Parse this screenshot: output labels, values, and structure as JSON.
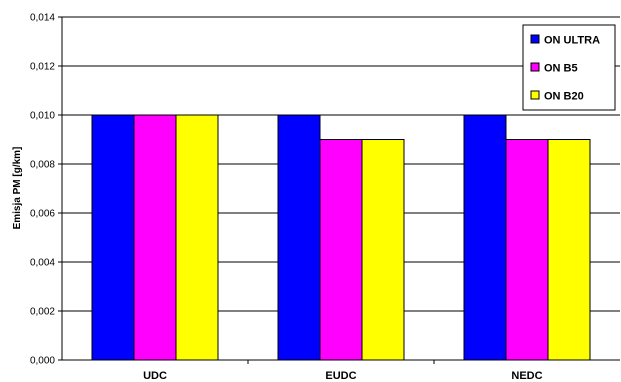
{
  "chart_data": {
    "type": "bar",
    "title": "",
    "xlabel": "",
    "ylabel": "Emisja PM [g/km]",
    "categories": [
      "UDC",
      "EUDC",
      "NEDC"
    ],
    "series": [
      {
        "name": "ON ULTRA",
        "color": "#0000ff",
        "values": [
          0.01,
          0.01,
          0.01
        ]
      },
      {
        "name": "ON B5",
        "color": "#ff00ff",
        "values": [
          0.01,
          0.009,
          0.009
        ]
      },
      {
        "name": "ON B20",
        "color": "#ffff00",
        "values": [
          0.01,
          0.009,
          0.009
        ]
      }
    ],
    "ylim": [
      0,
      0.014
    ],
    "yticks": [
      "0,000",
      "0,002",
      "0,004",
      "0,006",
      "0,008",
      "0,010",
      "0,012",
      "0,014"
    ],
    "grid": true,
    "legend": "top-right"
  }
}
